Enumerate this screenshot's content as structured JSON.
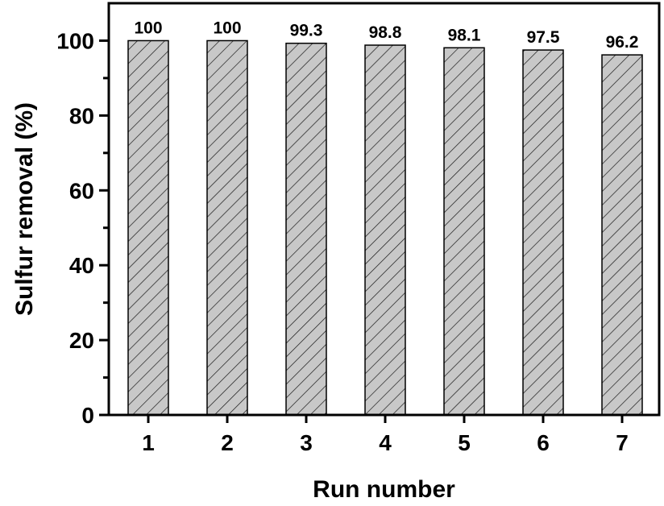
{
  "chart_data": {
    "type": "bar",
    "categories": [
      "1",
      "2",
      "3",
      "4",
      "5",
      "6",
      "7"
    ],
    "values": [
      100,
      100,
      99.3,
      98.8,
      98.1,
      97.5,
      96.2
    ],
    "data_labels": [
      "100",
      "100",
      "99.3",
      "98.8",
      "98.1",
      "97.5",
      "96.2"
    ],
    "xlabel": "Run number",
    "ylabel": "Sulfur removal (%)",
    "ylim": [
      0,
      110
    ],
    "yticks": [
      0,
      20,
      40,
      60,
      80,
      100
    ],
    "grid": false,
    "bar_fill": "#c8c8c8",
    "bar_pattern": "diagonal-hatch",
    "color_axis": "#000000"
  }
}
